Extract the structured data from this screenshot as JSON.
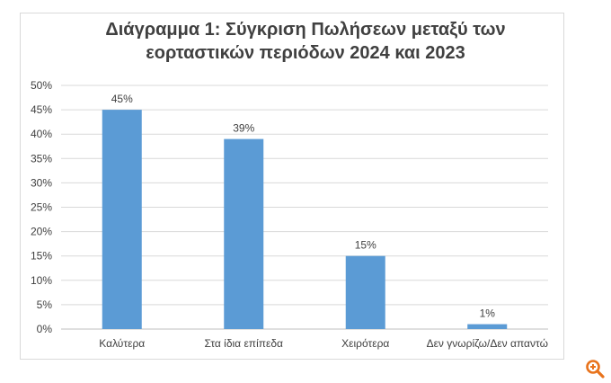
{
  "chart_data": {
    "type": "bar",
    "title_lines": [
      "Διάγραμμα 1: Σύγκριση Πωλήσεων μεταξύ των",
      "εορταστικών περιόδων 2024 και 2023"
    ],
    "categories": [
      "Καλύτερα",
      "Στα ίδια επίπεδα",
      "Χειρότερα",
      "Δεν γνωρίζω/Δεν απαντώ"
    ],
    "values": [
      45,
      39,
      15,
      1
    ],
    "data_labels": [
      "45%",
      "39%",
      "15%",
      "1%"
    ],
    "y_ticks": [
      "0%",
      "5%",
      "10%",
      "15%",
      "20%",
      "25%",
      "30%",
      "35%",
      "40%",
      "45%",
      "50%"
    ],
    "ylim": [
      0,
      50
    ],
    "grid": true,
    "legend": "none",
    "bar_color": "#5b9bd5",
    "grid_color": "#d9d9d9",
    "text_color": "#404040"
  },
  "controls": {
    "zoom_icon": "zoom-in-icon",
    "zoom_color": "#e8731c"
  }
}
